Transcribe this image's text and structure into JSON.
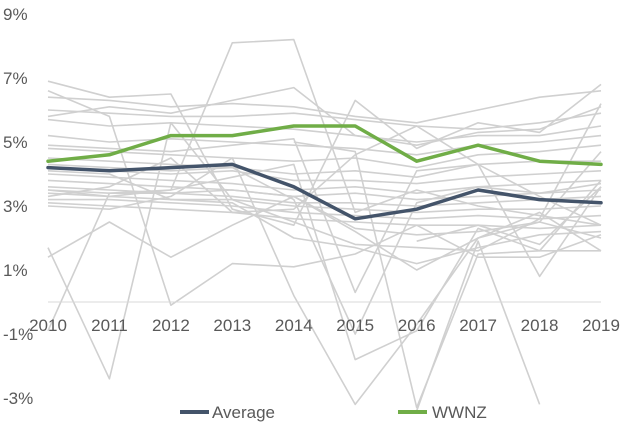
{
  "chart_data": {
    "type": "line",
    "title": "",
    "xlabel": "",
    "ylabel": "",
    "x": [
      "2010",
      "2011",
      "2012",
      "2013",
      "2014",
      "2015",
      "2016",
      "2017",
      "2018",
      "2019"
    ],
    "ylim": [
      -3,
      9
    ],
    "yticks": [
      9,
      7,
      5,
      3,
      1,
      -1,
      -3
    ],
    "ytick_labels": [
      "9%",
      "7%",
      "5%",
      "3%",
      "1%",
      "-1%",
      "-3%"
    ],
    "grid": false,
    "legend": {
      "placement": "bottom"
    },
    "colors": {
      "background": "#ffffff",
      "peer": "#d0d0d0",
      "average": "#44546a",
      "wwnz": "#70ad47",
      "axis": "#d9d9d9",
      "text": "#595959"
    },
    "background_series": [
      {
        "values": [
          6.9,
          6.4,
          6.5,
          2.9,
          2.4,
          6.3,
          4.8,
          5.6,
          5.3,
          6.8
        ]
      },
      {
        "values": [
          6.4,
          6.3,
          6.1,
          6.2,
          6.1,
          5.8,
          5.6,
          6.0,
          6.4,
          6.6
        ]
      },
      {
        "values": [
          6.0,
          5.9,
          5.8,
          5.8,
          5.9,
          5.7,
          5.5,
          5.4,
          5.6,
          5.9
        ]
      },
      {
        "values": [
          5.7,
          5.5,
          5.6,
          5.5,
          5.4,
          5.2,
          5.0,
          5.2,
          5.2,
          5.5
        ]
      },
      {
        "values": [
          5.2,
          5.0,
          5.1,
          5.0,
          4.9,
          4.8,
          4.6,
          4.9,
          5.0,
          5.2
        ]
      },
      {
        "values": [
          4.8,
          4.7,
          4.6,
          4.5,
          4.4,
          4.5,
          4.2,
          4.6,
          4.7,
          4.9
        ]
      },
      {
        "values": [
          4.5,
          4.4,
          4.3,
          4.2,
          4.0,
          4.1,
          3.9,
          4.3,
          4.4,
          4.4
        ]
      },
      {
        "values": [
          4.2,
          4.1,
          4.0,
          4.1,
          3.8,
          3.8,
          3.7,
          3.9,
          4.0,
          4.1
        ]
      },
      {
        "values": [
          4.0,
          3.9,
          3.8,
          3.7,
          3.5,
          3.6,
          3.4,
          3.6,
          3.7,
          3.8
        ]
      },
      {
        "values": [
          3.8,
          3.7,
          3.6,
          3.5,
          3.3,
          3.4,
          3.2,
          3.3,
          3.4,
          3.5
        ]
      },
      {
        "values": [
          3.6,
          3.5,
          3.4,
          3.3,
          3.1,
          3.1,
          3.0,
          3.1,
          3.2,
          3.3
        ]
      },
      {
        "values": [
          3.4,
          3.3,
          3.2,
          3.2,
          3.0,
          2.9,
          2.8,
          2.9,
          2.9,
          3.0
        ]
      },
      {
        "values": [
          3.2,
          3.2,
          3.1,
          3.0,
          2.8,
          2.7,
          2.6,
          2.7,
          2.6,
          2.7
        ]
      },
      {
        "values": [
          3.1,
          3.0,
          2.9,
          2.8,
          2.6,
          2.5,
          2.4,
          2.4,
          2.3,
          2.4
        ]
      },
      {
        "values": [
          4.1,
          4.0,
          3.2,
          3.1,
          2.0,
          1.7,
          1.2,
          1.7,
          2.1,
          2.2
        ]
      },
      {
        "values": [
          3.3,
          3.6,
          4.5,
          2.8,
          2.9,
          4.6,
          5.5,
          4.3,
          3.3,
          2.4
        ]
      },
      {
        "values": [
          1.4,
          2.5,
          1.4,
          2.4,
          3.3,
          2.2,
          1.0,
          2.0,
          2.8,
          1.6
        ]
      },
      {
        "values": [
          -0.9,
          3.4,
          3.4,
          3.5,
          3.3,
          2.3,
          2.1,
          2.2,
          2.5,
          2.0
        ]
      },
      {
        "values": [
          1.7,
          -2.4,
          5.6,
          3.2,
          2.5,
          1.8,
          1.7,
          1.6,
          2.6,
          6.2
        ]
      },
      {
        "values": [
          6.6,
          5.8,
          -0.1,
          1.2,
          1.1,
          1.5,
          2.4,
          1.4,
          1.4,
          2.1
        ]
      },
      {
        "values": [
          5.8,
          6.1,
          5.9,
          6.3,
          6.7,
          5.2,
          4.9,
          5.3,
          5.4,
          6.1
        ]
      },
      {
        "values": [
          3.5,
          3.4,
          3.5,
          8.1,
          8.2,
          2.8,
          3.5,
          3.0,
          2.7,
          2.4
        ]
      },
      {
        "values": [
          4.3,
          4.2,
          4.1,
          4.2,
          3.2,
          -1.0,
          3.1,
          3.6,
          3.4,
          3.7
        ]
      },
      {
        "values": [
          3.0,
          2.9,
          3.3,
          4.5,
          0.2,
          -3.2,
          -0.7,
          2.0,
          2.5,
          4.7
        ]
      },
      {
        "values": [
          3.5,
          3.3,
          3.5,
          3.9,
          4.3,
          -1.8,
          -0.9,
          2.3,
          1.6,
          3.8
        ]
      },
      {
        "values": [
          4.9,
          4.8,
          4.7,
          4.9,
          5.1,
          0.3,
          4.1,
          4.3,
          0.8,
          3.6
        ]
      },
      {
        "values": [
          null,
          null,
          null,
          null,
          5.0,
          4.7,
          -3.3,
          1.5,
          1.6,
          1.6
        ]
      },
      {
        "values": [
          null,
          null,
          null,
          null,
          null,
          null,
          -3.4,
          1.9,
          -3.2,
          null
        ]
      },
      {
        "values": [
          null,
          null,
          null,
          null,
          null,
          null,
          1.9,
          2.4,
          1.8,
          3.6
        ]
      }
    ],
    "series": [
      {
        "name": "Average",
        "values": [
          4.2,
          4.1,
          4.2,
          4.3,
          3.6,
          2.6,
          2.9,
          3.5,
          3.2,
          3.1
        ]
      },
      {
        "name": "WWNZ",
        "values": [
          4.4,
          4.6,
          5.2,
          5.2,
          5.5,
          5.5,
          4.4,
          4.9,
          4.4,
          4.3
        ]
      }
    ]
  }
}
